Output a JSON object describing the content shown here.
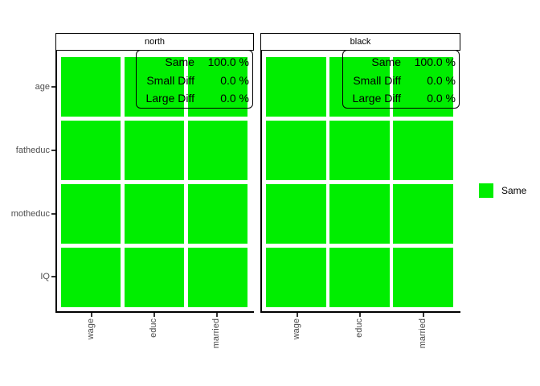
{
  "colors": {
    "background": "#ffffff",
    "tile": "#00ee00",
    "axis_line": "#000000",
    "tick": "#333333",
    "axis_text": "#4d4d4d",
    "strip_text": "#000000",
    "annotation_text": "#000000"
  },
  "facets": [
    {
      "strip_label": "north",
      "annotation": [
        {
          "label": "Same",
          "value": "100.0 %"
        },
        {
          "label": "Small Diff",
          "value": "0.0 %"
        },
        {
          "label": "Large Diff",
          "value": "0.0 %"
        }
      ]
    },
    {
      "strip_label": "black",
      "annotation": [
        {
          "label": "Same",
          "value": "100.0 %"
        },
        {
          "label": "Small Diff",
          "value": "0.0 %"
        },
        {
          "label": "Large Diff",
          "value": "0.0 %"
        }
      ]
    }
  ],
  "axes": {
    "y_labels": [
      "age",
      "fatheduc",
      "motheduc",
      "IQ"
    ],
    "x_labels": [
      "wage",
      "educ",
      "married"
    ]
  },
  "legend": {
    "items": [
      {
        "label": "Same",
        "color": "#00ee00"
      }
    ]
  },
  "chart_data": {
    "type": "heatmap",
    "x": [
      "wage",
      "educ",
      "married"
    ],
    "y": [
      "age",
      "fatheduc",
      "motheduc",
      "IQ"
    ],
    "legend_entries": [
      "Same"
    ],
    "value_color_map": {
      "Same": "#00ee00"
    },
    "facets": [
      {
        "name": "north",
        "cells": [
          [
            "Same",
            "Same",
            "Same"
          ],
          [
            "Same",
            "Same",
            "Same"
          ],
          [
            "Same",
            "Same",
            "Same"
          ],
          [
            "Same",
            "Same",
            "Same"
          ]
        ],
        "summary": {
          "Same": 100.0,
          "Small Diff": 0.0,
          "Large Diff": 0.0
        }
      },
      {
        "name": "black",
        "cells": [
          [
            "Same",
            "Same",
            "Same"
          ],
          [
            "Same",
            "Same",
            "Same"
          ],
          [
            "Same",
            "Same",
            "Same"
          ],
          [
            "Same",
            "Same",
            "Same"
          ]
        ],
        "summary": {
          "Same": 100.0,
          "Small Diff": 0.0,
          "Large Diff": 0.0
        }
      }
    ],
    "layout": {
      "grid": "off",
      "legend_position": "right",
      "x_label_angle": 90
    }
  }
}
